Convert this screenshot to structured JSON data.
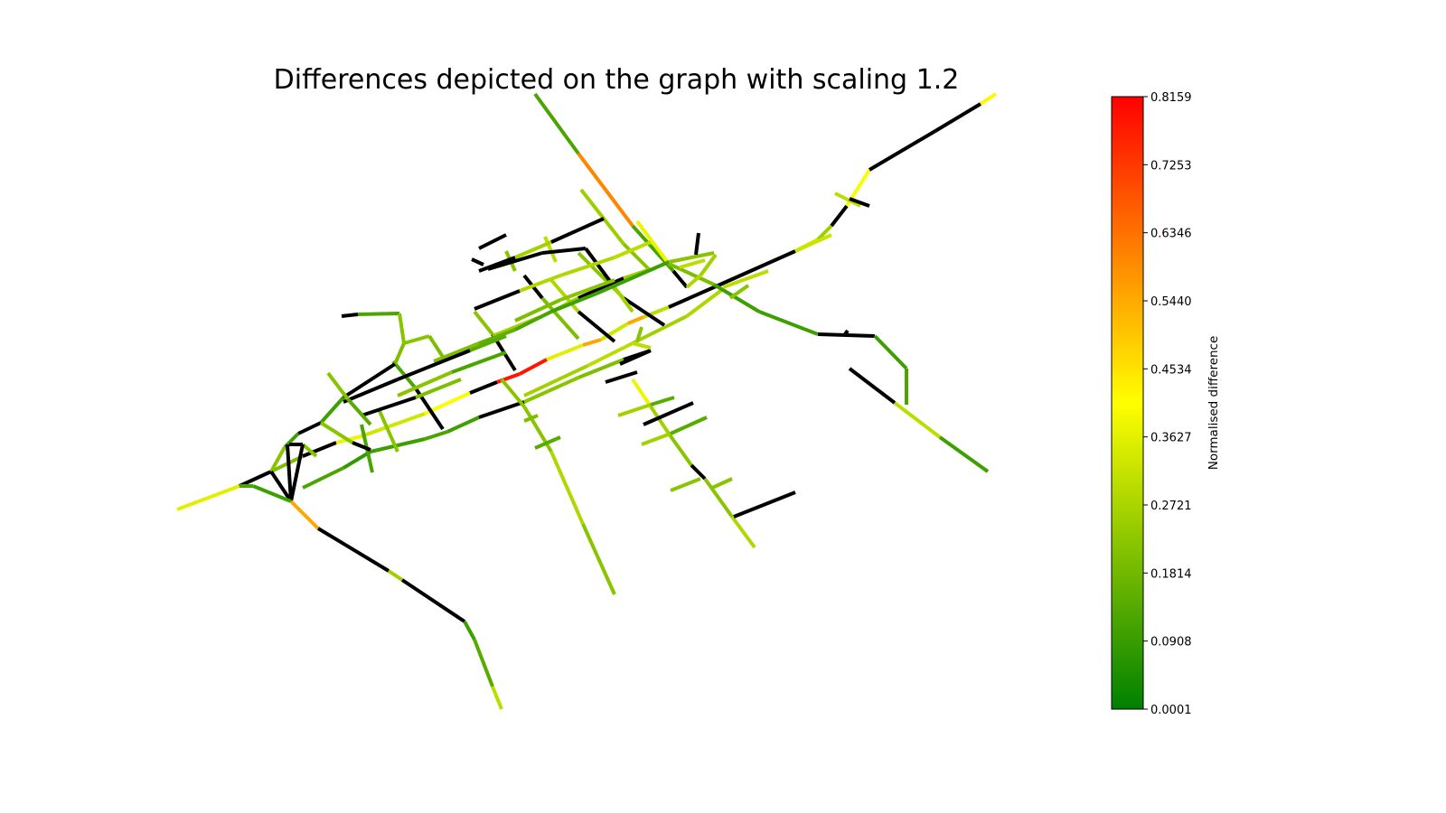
{
  "figure": {
    "title": "Differences depicted on the graph with scaling 1.2"
  },
  "colorbar": {
    "label": "Normalised difference",
    "min": 0.0001,
    "max": 0.8159,
    "ticks": [
      "0.8159",
      "0.7253",
      "0.6346",
      "0.5440",
      "0.4534",
      "0.3627",
      "0.2721",
      "0.1814",
      "0.0908",
      "0.0001"
    ],
    "colors": [
      "#008000",
      "#ffff00",
      "#ff0000"
    ],
    "no_data_color": "#000000"
  },
  "chart_data": {
    "type": "network-graph",
    "title": "Differences depicted on the graph with scaling 1.2",
    "color_scale": {
      "label": "Normalised difference",
      "min": 0.0001,
      "max": 0.8159,
      "colormap": [
        "green",
        "yellow",
        "red"
      ]
    },
    "edge_value_summary": {
      "max_edge_value": 0.8159,
      "highest_edges_description": "red segment near center",
      "unvalued_edges": "black"
    }
  }
}
